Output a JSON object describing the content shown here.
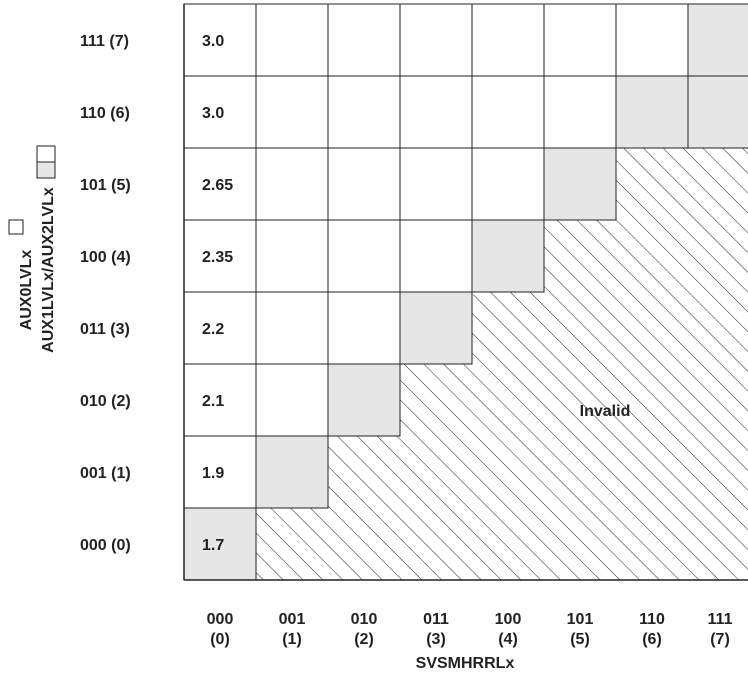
{
  "x_axis": {
    "title": "SVSMHRRLx",
    "codes": [
      "000",
      "001",
      "010",
      "011",
      "100",
      "101",
      "110",
      "111"
    ],
    "indices": [
      "(0)",
      "(1)",
      "(2)",
      "(3)",
      "(4)",
      "(5)",
      "(6)",
      "(7)"
    ]
  },
  "y_axis": {
    "title_line1": "AUX0LVLx",
    "title_line2": "AUX1LVLx/AUX2LVLx",
    "rows": [
      "111 (7)",
      "110 (6)",
      "101 (5)",
      "100 (4)",
      "011 (3)",
      "010 (2)",
      "001 (1)",
      "000 (0)"
    ]
  },
  "first_column_values": [
    "3.0",
    "3.0",
    "2.65",
    "2.35",
    "2.2",
    "2.1",
    "1.9",
    "1.7"
  ],
  "invalid_label": "Invalid",
  "colors": {
    "grid_line": "#222222",
    "cell_gray": "#e6e6e6",
    "cell_white": "#ffffff",
    "hatch": "#222222"
  }
}
